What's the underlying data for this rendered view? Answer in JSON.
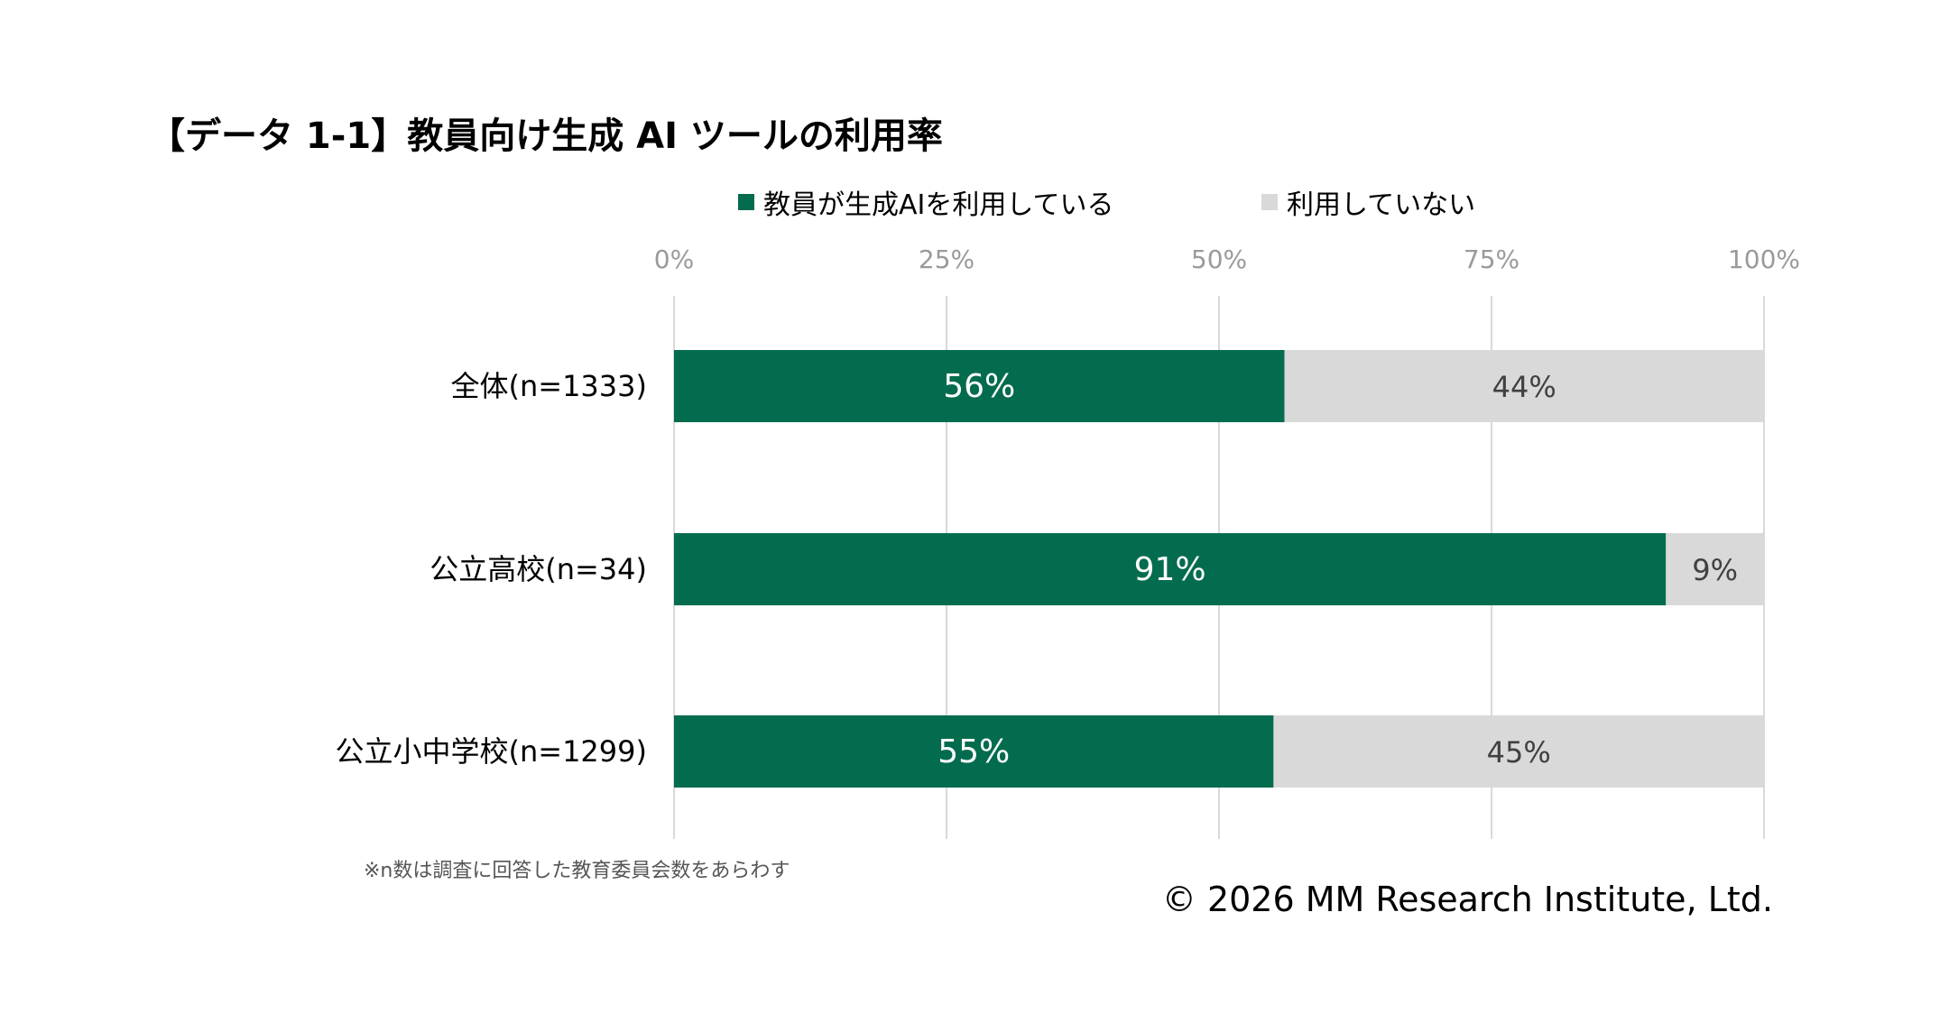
{
  "title": "【データ 1-1】教員向け生成 AI ツールの利用率",
  "note": "※n数は調査に回答した教育委員会数をあらわす",
  "copyright": "© 2026 MM Research Institute, Ltd.",
  "colors": {
    "used": "#046c4e",
    "not_used": "#d9d9d9",
    "grid": "#d9d9d9"
  },
  "chart_data": {
    "type": "bar",
    "orientation": "horizontal",
    "stacked": true,
    "title": "【データ 1-1】教員向け生成 AI ツールの利用率",
    "categories": [
      "全体(n=1333)",
      "公立高校(n=34)",
      "公立小中学校(n=1299)"
    ],
    "series": [
      {
        "name": "教員が生成AIを利用している",
        "values": [
          56,
          91,
          55
        ],
        "labels": [
          "56%",
          "91%",
          "55%"
        ]
      },
      {
        "name": "利用していない",
        "values": [
          44,
          9,
          45
        ],
        "labels": [
          "44%",
          "9%",
          "45%"
        ]
      }
    ],
    "xlim": [
      0,
      100
    ],
    "xticks": [
      0,
      25,
      50,
      75,
      100
    ],
    "xtick_labels": [
      "0%",
      "25%",
      "50%",
      "75%",
      "100%"
    ],
    "axis_position": "top",
    "grid": true,
    "legend": "top-center"
  }
}
